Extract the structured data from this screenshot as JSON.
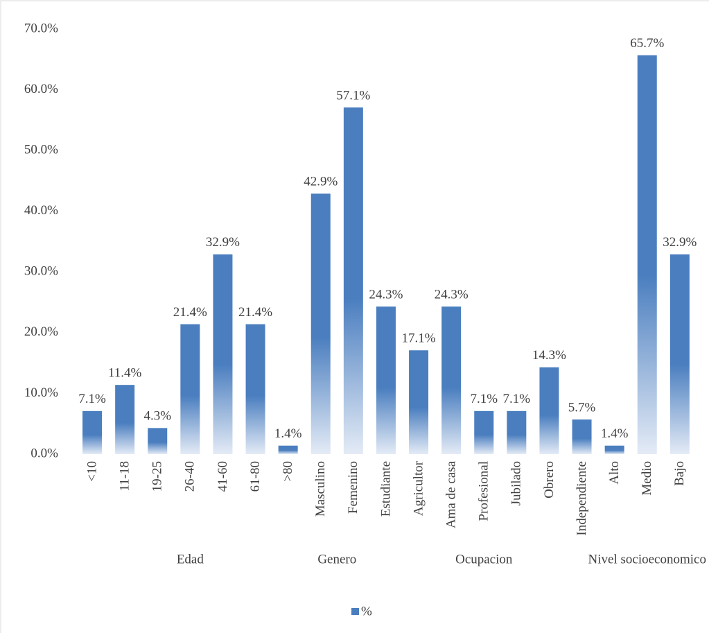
{
  "chart_data": {
    "type": "bar",
    "groups": [
      {
        "label": "Edad",
        "categories": [
          "<10",
          "11-18",
          "19-25",
          "26-40",
          "41-60",
          "61-80",
          ">80"
        ]
      },
      {
        "label": "Genero",
        "categories": [
          "Masculino",
          "Femenino"
        ]
      },
      {
        "label": "Ocupacion",
        "categories": [
          "Estudiante",
          "Agricultor",
          "Ama de casa",
          "Profesional",
          "Jubilado",
          "Obrero",
          "Independiente"
        ]
      },
      {
        "label": "Nivel socioeconomico",
        "categories": [
          "Alto",
          "Medio",
          "Bajo"
        ]
      }
    ],
    "series": [
      {
        "name": "%",
        "color": "#4a7ebf",
        "values": [
          7.1,
          11.4,
          4.3,
          21.4,
          32.9,
          21.4,
          1.4,
          42.9,
          57.1,
          24.3,
          17.1,
          24.3,
          7.1,
          7.1,
          14.3,
          5.7,
          1.4,
          65.7,
          32.9
        ],
        "value_labels": [
          "7.1%",
          "11.4%",
          "4.3%",
          "21.4%",
          "32.9%",
          "21.4%",
          "1.4%",
          "42.9%",
          "57.1%",
          "24.3%",
          "17.1%",
          "24.3%",
          "7.1%",
          "7.1%",
          "14.3%",
          "5.7%",
          "1.4%",
          "65.7%",
          "32.9%"
        ]
      }
    ],
    "ylim": [
      0,
      70
    ],
    "yticks": [
      {
        "value": 0,
        "label": "0.0%"
      },
      {
        "value": 10,
        "label": "10.0%"
      },
      {
        "value": 20,
        "label": "20.0%"
      },
      {
        "value": 30,
        "label": "30.0%"
      },
      {
        "value": 40,
        "label": "40.0%"
      },
      {
        "value": 50,
        "label": "50.0%"
      },
      {
        "value": 60,
        "label": "60.0%"
      },
      {
        "value": 70,
        "label": "70.0%"
      }
    ],
    "grid": false,
    "legend": "bottom"
  }
}
